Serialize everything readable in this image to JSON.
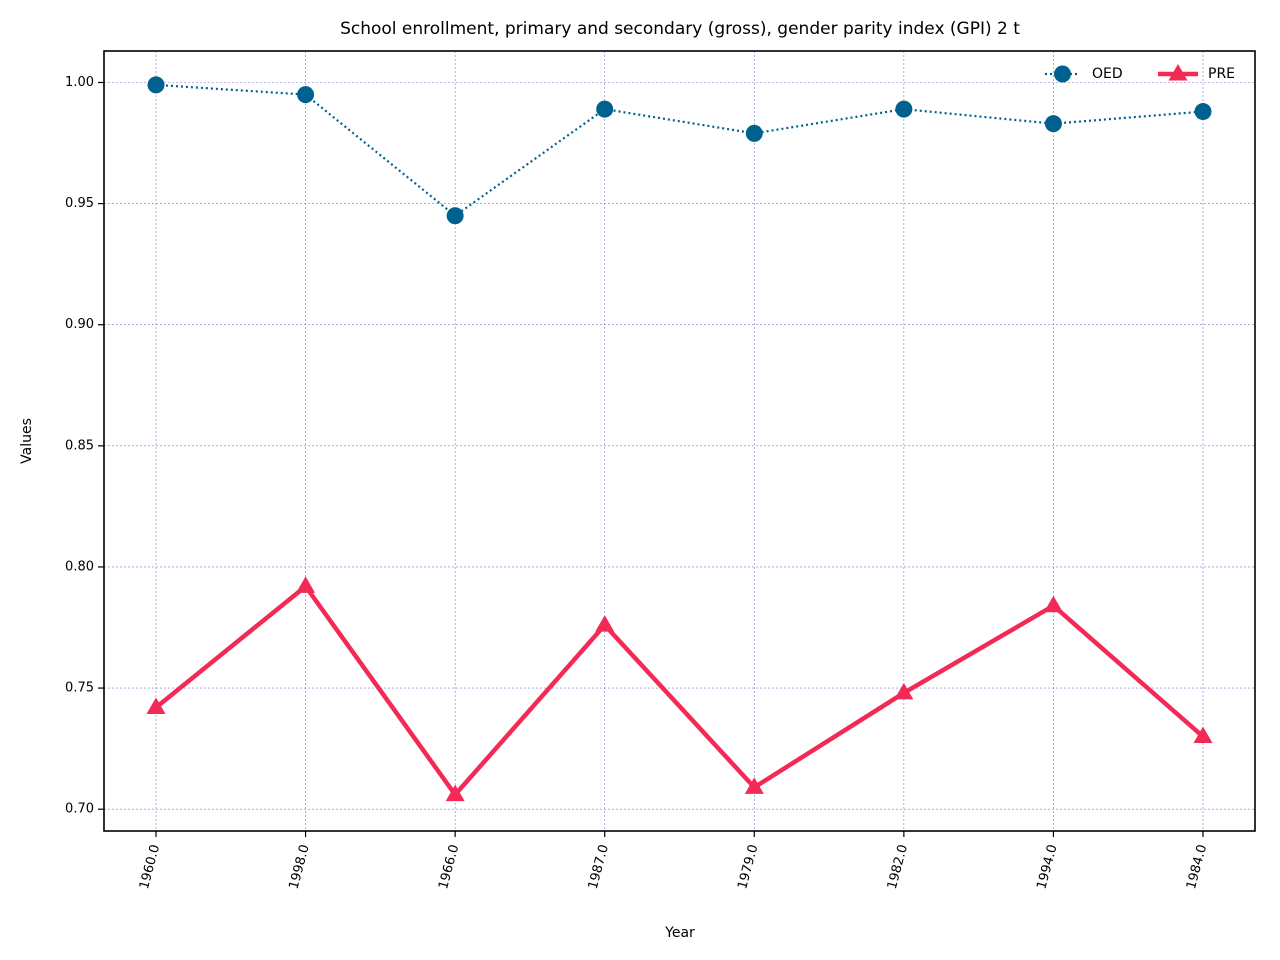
{
  "chart_data": {
    "type": "line",
    "title": "School enrollment, primary and secondary (gross), gender parity index (GPI) 2 t",
    "xlabel": "Year",
    "ylabel": "Values",
    "categories": [
      "1960.0",
      "1998.0",
      "1966.0",
      "1987.0",
      "1979.0",
      "1982.0",
      "1994.0",
      "1984.0"
    ],
    "ylim": [
      0.691,
      1.013
    ],
    "yticks": [
      "0.70",
      "0.75",
      "0.80",
      "0.85",
      "0.90",
      "0.95",
      "1.00"
    ],
    "grid": true,
    "legend_position": "top-right",
    "series": [
      {
        "name": "OED",
        "color": "#00618f",
        "line_style": "dotted",
        "marker": "circle",
        "values": [
          0.999,
          0.995,
          0.945,
          0.989,
          0.979,
          0.989,
          0.983,
          0.988
        ]
      },
      {
        "name": "PRE",
        "color": "#f22a55",
        "line_style": "solid",
        "marker": "triangle",
        "values": [
          0.742,
          0.792,
          0.706,
          0.776,
          0.709,
          0.748,
          0.784,
          0.73
        ]
      }
    ]
  }
}
